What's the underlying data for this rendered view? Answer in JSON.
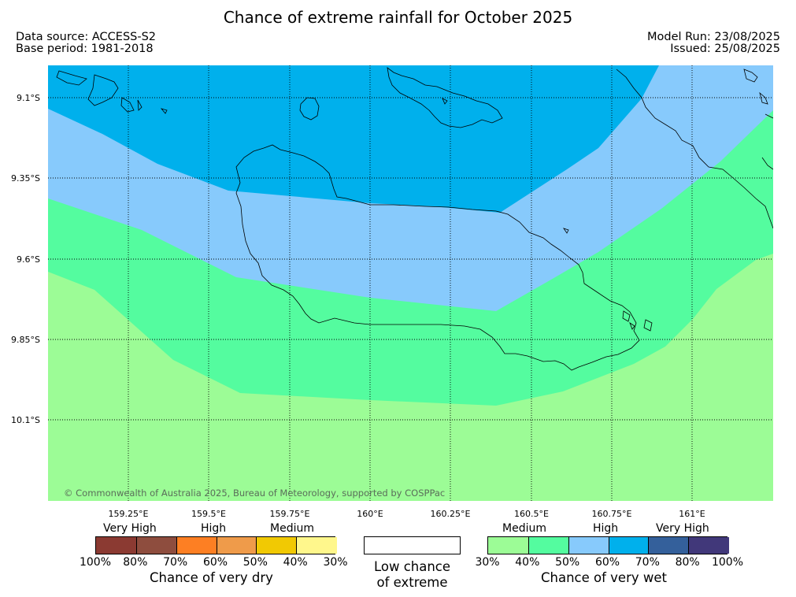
{
  "title": "Chance of extreme rainfall for October 2025",
  "header": {
    "data_source": "Data source: ACCESS-S2",
    "base_period": "Base period: 1981-2018",
    "model_run": "Model Run: 23/08/2025",
    "issued": "Issued: 25/08/2025"
  },
  "map": {
    "lat_labels": [
      "9.1°S",
      "9.35°S",
      "9.6°S",
      "9.85°S",
      "10.1°S"
    ],
    "lon_labels": [
      "159.25°E",
      "159.5°E",
      "159.75°E",
      "160°E",
      "160.25°E",
      "160.5°E",
      "160.75°E",
      "161°E"
    ],
    "copyright": "© Commonwealth of Australia 2025, Bureau of Meteorology, supported by COSPPac",
    "zone_colors": {
      "very_high": "#00b0ec",
      "high": "#87cafc",
      "medium_high": "#54fc9f",
      "medium": "#9cfc96"
    }
  },
  "legend": {
    "dry": {
      "categories": [
        "Very High",
        "High",
        "Medium"
      ],
      "colors": [
        "#8b3a32",
        "#8e4d3e",
        "#fd7f23",
        "#ef9b4a",
        "#f1c903",
        "#fff78c"
      ],
      "ticks": [
        "100%",
        "80%",
        "70%",
        "60%",
        "50%",
        "40%",
        "30%"
      ],
      "label": "Chance of very dry"
    },
    "neutral": {
      "line1": "Low chance",
      "line2": "of extreme",
      "color": "#ffffff"
    },
    "wet": {
      "categories": [
        "Medium",
        "High",
        "Very High"
      ],
      "colors": [
        "#9cfc96",
        "#54fc9f",
        "#87cafc",
        "#00b0ec",
        "#34609b",
        "#41387a"
      ],
      "ticks": [
        "30%",
        "40%",
        "50%",
        "60%",
        "70%",
        "80%",
        "100%"
      ],
      "label": "Chance of very wet"
    }
  }
}
